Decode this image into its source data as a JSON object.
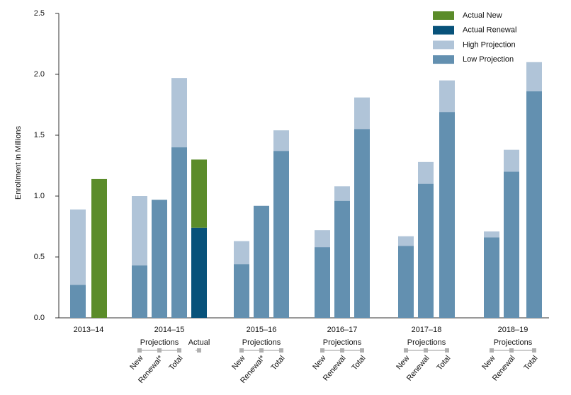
{
  "chart_data": {
    "type": "bar",
    "ylabel": "Enrollment in Millions",
    "ylim": [
      0,
      2.5
    ],
    "yticks": [
      {
        "value": 0,
        "label": "0.0"
      },
      0.5,
      {
        "value": 1,
        "label": "1.0"
      },
      1.5,
      {
        "value": 2,
        "label": "2.0"
      },
      2.5
    ],
    "legend": "top-right",
    "groups": [
      {
        "name": "2013–14",
        "clusters": [
          {
            "label": null,
            "categories": [
              null,
              null
            ]
          }
        ]
      },
      {
        "name": "2014–15",
        "clusters": [
          {
            "label": "Projections",
            "categories": [
              "New",
              "Renewal*",
              "Total"
            ]
          },
          {
            "label": "Actual",
            "categories": [
              null
            ]
          }
        ]
      },
      {
        "name": "2015–16",
        "clusters": [
          {
            "label": "Projections",
            "categories": [
              "New",
              "Renewal*",
              "Total"
            ]
          }
        ]
      },
      {
        "name": "2016–17",
        "clusters": [
          {
            "label": "Projections",
            "categories": [
              "New",
              "Renewal",
              "Total"
            ]
          }
        ]
      },
      {
        "name": "2017–18",
        "clusters": [
          {
            "label": "Projections",
            "categories": [
              "New",
              "Renewal",
              "Total"
            ]
          }
        ]
      },
      {
        "name": "2018–19",
        "clusters": [
          {
            "label": "Projections",
            "categories": [
              "New",
              "Renewal",
              "Total"
            ]
          }
        ]
      }
    ],
    "series": [
      {
        "name": "Actual New",
        "color": "#5b8c2a",
        "values": [
          null,
          1.14,
          null,
          null,
          null,
          0.56,
          null,
          null,
          null,
          null,
          null,
          null,
          null,
          null,
          null,
          null,
          null,
          null
        ]
      },
      {
        "name": "Actual Renewal",
        "color": "#08527a",
        "values": [
          null,
          null,
          null,
          null,
          null,
          0.74,
          null,
          null,
          null,
          null,
          null,
          null,
          null,
          null,
          null,
          null,
          null,
          null
        ]
      },
      {
        "name": "High Projection",
        "color": "#b0c4d8",
        "values": [
          0.89,
          null,
          1.0,
          null,
          1.97,
          null,
          0.63,
          null,
          1.54,
          0.72,
          1.08,
          1.81,
          0.67,
          1.28,
          1.95,
          0.71,
          1.38,
          2.1
        ]
      },
      {
        "name": "Low Projection",
        "color": "#6390b0",
        "values": [
          0.27,
          null,
          0.43,
          0.97,
          1.4,
          null,
          0.44,
          0.92,
          1.37,
          0.58,
          0.96,
          1.55,
          0.59,
          1.1,
          1.69,
          0.66,
          1.2,
          1.86
        ]
      }
    ]
  }
}
